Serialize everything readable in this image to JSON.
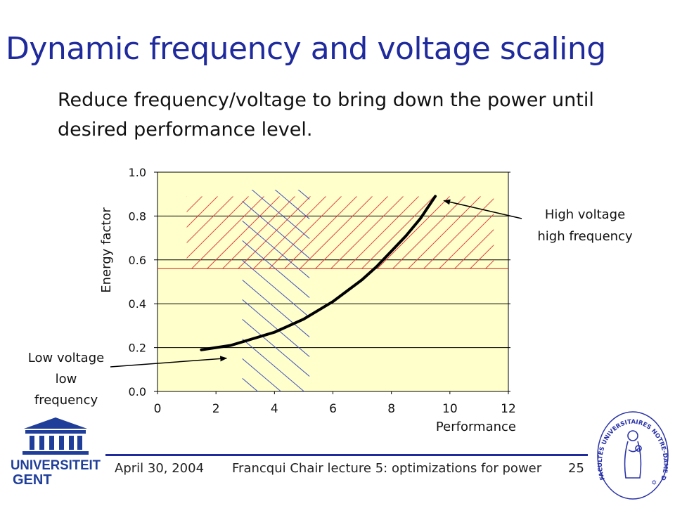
{
  "slide": {
    "title": "Dynamic frequency and voltage scaling",
    "subtitle": "Reduce frequency/voltage to bring down the power until desired performance level."
  },
  "chart_data": {
    "type": "line",
    "xlabel": "Performance",
    "ylabel": "Energy factor",
    "xlim": [
      0,
      12
    ],
    "ylim": [
      0.0,
      1.0
    ],
    "x_ticks": [
      "0",
      "2",
      "4",
      "6",
      "8",
      "10",
      "12"
    ],
    "y_ticks": [
      "0.0",
      "0.2",
      "0.4",
      "0.6",
      "0.8",
      "1.0"
    ],
    "grid": "horizontal",
    "background_color": "#ffffcc",
    "series": [
      {
        "color": "#000000",
        "x": [
          1.5,
          2.0,
          2.5,
          3.0,
          3.5,
          4.0,
          4.5,
          5.0,
          5.5,
          6.0,
          6.5,
          7.0,
          7.5,
          8.0,
          8.5,
          9.0,
          9.5
        ],
        "y": [
          0.19,
          0.2,
          0.21,
          0.23,
          0.25,
          0.27,
          0.3,
          0.33,
          0.37,
          0.41,
          0.46,
          0.51,
          0.57,
          0.64,
          0.71,
          0.79,
          0.89
        ]
      }
    ],
    "regions": [
      {
        "kind": "hatched",
        "color": "#e04040",
        "x_range": [
          1.0,
          11.5
        ],
        "y_range": [
          0.56,
          0.89
        ]
      },
      {
        "kind": "hatched",
        "color": "#4050c0",
        "x_range": [
          2.9,
          5.2
        ],
        "y_range": [
          0.0,
          0.92
        ]
      }
    ],
    "threshold_line": {
      "y": 0.56,
      "color": "#d02020"
    },
    "annotations": [
      {
        "text_lines": [
          "High voltage",
          "high frequency"
        ],
        "arrow_to": [
          9.6,
          0.88
        ]
      },
      {
        "text_lines": [
          "Low voltage",
          "low",
          "frequency"
        ],
        "arrow_to": [
          1.4,
          0.19
        ]
      }
    ]
  },
  "footer": {
    "date": "April 30, 2004",
    "lecture": "Francqui Chair lecture 5: optimizations for power",
    "page": "25"
  },
  "logos": {
    "left_lines": [
      "UNIVERSITEIT",
      "GENT"
    ],
    "right_text": "FACULTÉS UNIVERSITAIRES NOTRE-DAME DE LA PAIX · NAMUR"
  },
  "colors": {
    "title": "#1f2a9c",
    "footer_rule": "#1f2a9c",
    "seal": "#2a33a8"
  }
}
